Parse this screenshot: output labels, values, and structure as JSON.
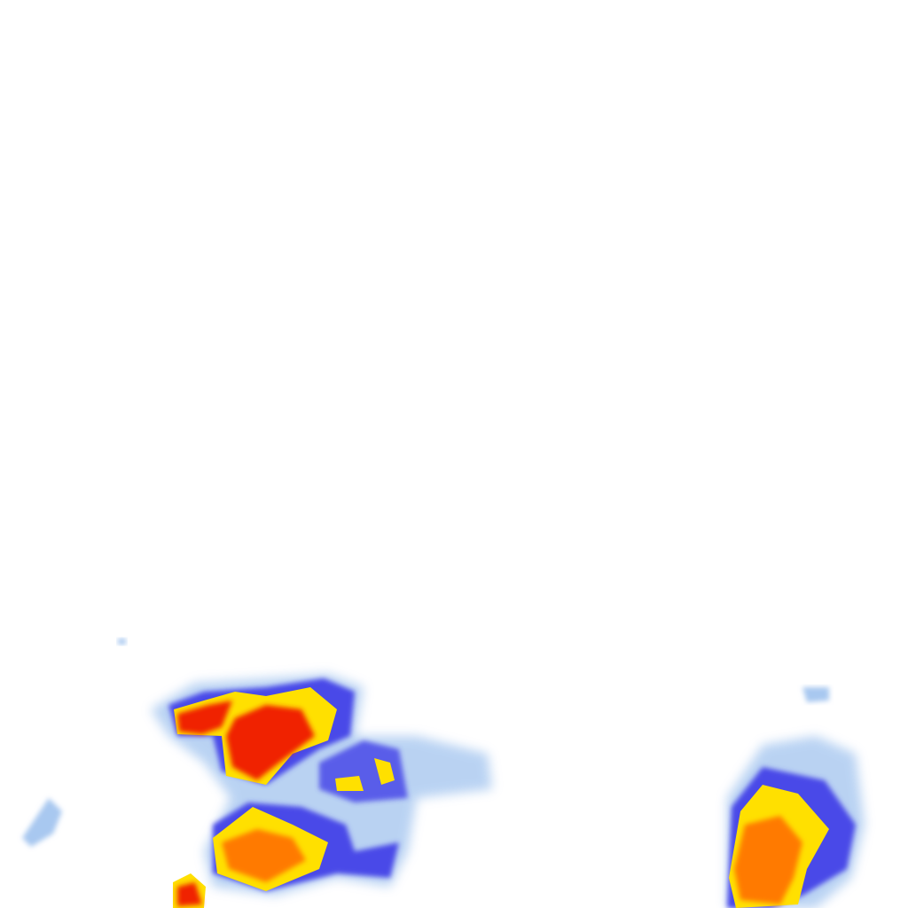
{
  "map": {
    "layer": "precipitation-intensity-heatmap",
    "colors": {
      "background": "#ffffff",
      "very_light": "#a8c8f0",
      "light": "#4a4ae8",
      "medium": "#ffe000",
      "heavy": "#ff7a00",
      "very_heavy": "#f02000"
    }
  }
}
